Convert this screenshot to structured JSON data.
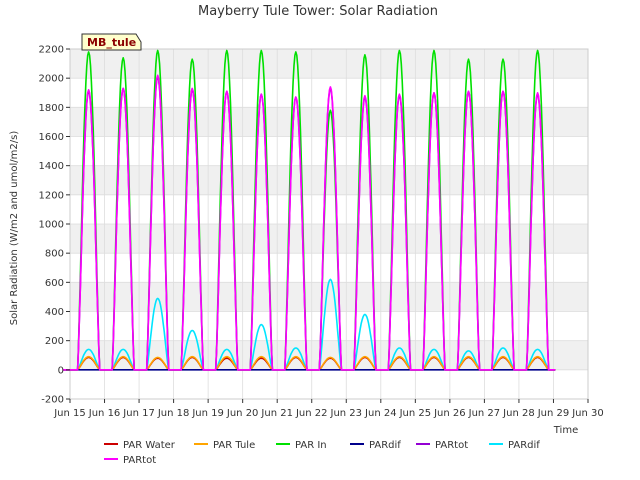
{
  "chart_data": {
    "type": "line",
    "title": "Mayberry Tule Tower: Solar Radiation",
    "site_label": "MB_tule",
    "xlabel": "Time",
    "ylabel": "Solar Radiation (W/m2 and umol/m2/s)",
    "xlim": [
      15,
      30
    ],
    "ylim": [
      -200,
      2200
    ],
    "yticks": [
      -200,
      0,
      200,
      400,
      600,
      800,
      1000,
      1200,
      1400,
      1600,
      1800,
      2000,
      2200
    ],
    "xticks": [
      15,
      16,
      17,
      18,
      19,
      20,
      21,
      22,
      23,
      24,
      25,
      26,
      27,
      28,
      29,
      30
    ],
    "xtick_labels": [
      "Jun 15",
      "Jun 16",
      "Jun 17",
      "Jun 18",
      "Jun 19",
      "Jun 20",
      "Jun 21",
      "Jun 22",
      "Jun 23",
      "Jun 24",
      "Jun 25",
      "Jun 26",
      "Jun 27",
      "Jun 28",
      "Jun 29",
      "Jun 30"
    ],
    "grid": true,
    "legend_position": "bottom",
    "daylight": {
      "sunrise": 0.22,
      "sunset": 0.86
    },
    "days": [
      15,
      16,
      17,
      18,
      19,
      20,
      21,
      22,
      23,
      24,
      25,
      26,
      27,
      28
    ],
    "series": [
      {
        "name": "PAR Water",
        "color": "#cc0000",
        "peaks": [
          85,
          85,
          80,
          85,
          80,
          80,
          85,
          80,
          85,
          85,
          85,
          85,
          85,
          85
        ]
      },
      {
        "name": "PAR Tule",
        "color": "#ffa500",
        "peaks": [
          90,
          90,
          85,
          90,
          90,
          90,
          90,
          85,
          90,
          90,
          90,
          90,
          90,
          90
        ]
      },
      {
        "name": "PAR In",
        "color": "#00e000",
        "peaks": [
          2180,
          2140,
          2190,
          2130,
          2190,
          2190,
          2180,
          1780,
          2160,
          2190,
          2190,
          2130,
          2130,
          2190
        ]
      },
      {
        "name": "PARdif",
        "color": "#00008b",
        "peaks": [
          0,
          0,
          0,
          0,
          0,
          0,
          0,
          0,
          0,
          0,
          0,
          0,
          0,
          0
        ]
      },
      {
        "name": "PARtot",
        "color": "#9400d3",
        "peaks": [
          1910,
          1930,
          2010,
          1920,
          1910,
          1890,
          1870,
          1930,
          1870,
          1880,
          1900,
          1910,
          1910,
          1890
        ]
      },
      {
        "name": "PARdif",
        "color": "#00e5ff",
        "peaks": [
          140,
          140,
          490,
          270,
          140,
          310,
          150,
          620,
          380,
          150,
          140,
          130,
          150,
          140
        ]
      },
      {
        "name": "PARtot",
        "color": "#ff00ff",
        "peaks": [
          1920,
          1930,
          2020,
          1930,
          1910,
          1890,
          1870,
          1940,
          1880,
          1890,
          1900,
          1910,
          1910,
          1900
        ]
      }
    ]
  }
}
